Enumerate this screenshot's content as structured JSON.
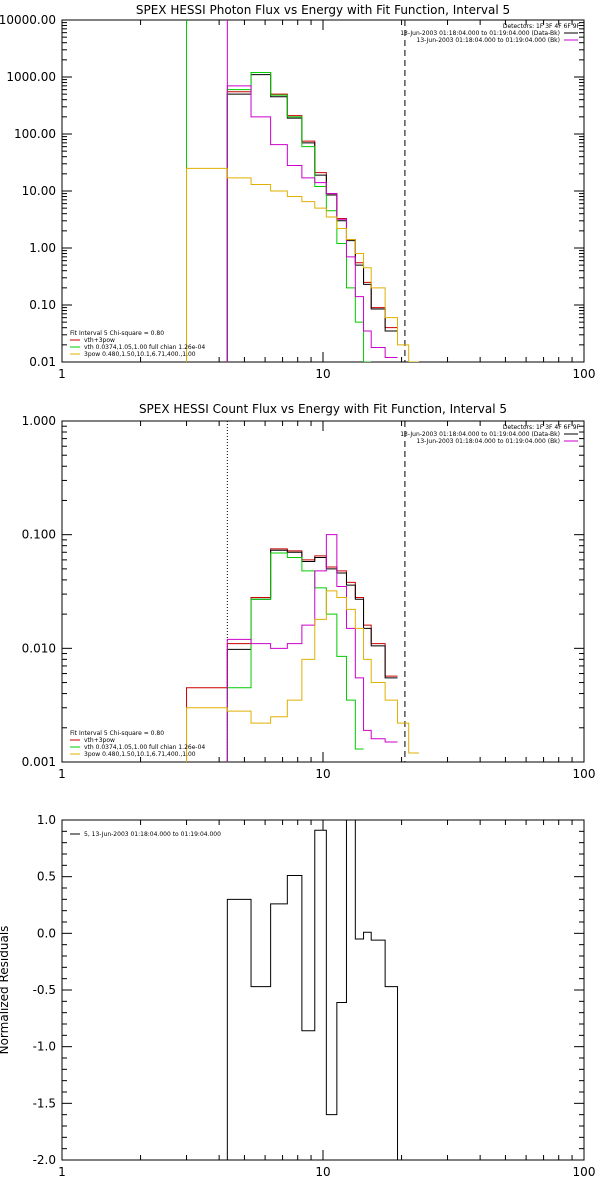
{
  "chart_data": [
    {
      "type": "line",
      "title": "SPEX HESSI Photon Flux vs Energy with Fit Function, Interval 5",
      "xscale": "log",
      "yscale": "log",
      "xlim": [
        1,
        100
      ],
      "ylim": [
        0.01,
        10000
      ],
      "x_ticks": [
        "1",
        "10",
        "100"
      ],
      "y_ticks": [
        "0.01",
        "0.10",
        "1.00",
        "10.00",
        "100.00",
        "1000.00",
        "10000.00"
      ],
      "detectors_label": "Detectors: 1F 3F 4F 6F 9F",
      "legend_right": [
        {
          "text": "13-Jun-2003 01:18:04.000 to 01:19:04.000 (Data-Bk)",
          "color": "#000000"
        },
        {
          "text": "13-Jun-2003 01:18:04.000 to 01:19:04.000 (Bk)",
          "color": "#cc00cc"
        }
      ],
      "legend_left": [
        {
          "text": "Fit Interval 5   Chi-square = 0.80",
          "color": ""
        },
        {
          "text": "vth+3pow",
          "color": "#cc0000"
        },
        {
          "text": "vth 0.0374,1.05,1.00  full chian 1.26e-04",
          "color": "#00cc00"
        },
        {
          "text": "3pow 0.480,1.50,10.1,6.71,400.,1.00",
          "color": "#e0b000"
        }
      ],
      "vlines": [
        {
          "x": 3.0,
          "style": "solid",
          "color": "#00cc00"
        },
        {
          "x": 4.3,
          "style": "solid",
          "color": "#cc00cc"
        },
        {
          "x": 20.6,
          "style": "dashed",
          "color": "#000000"
        }
      ],
      "edges": [
        3.0,
        4.3,
        5.3,
        6.3,
        7.3,
        8.3,
        9.3,
        10.3,
        11.3,
        12.3,
        13.3,
        14.3,
        15.3,
        17.3,
        19.3,
        21.3,
        23.3,
        26.3
      ],
      "series": [
        {
          "name": "vth+3pow",
          "color": "#cc0000",
          "values": [
            null,
            550,
            1200,
            500,
            210,
            75,
            21,
            9,
            3.3,
            1.4,
            0.55,
            0.25,
            0.09,
            0.04,
            null,
            null,
            null
          ]
        },
        {
          "color": "#000000",
          "values": [
            null,
            500,
            1100,
            450,
            190,
            70,
            19,
            8.5,
            3.0,
            1.35,
            0.5,
            0.23,
            0.085,
            0.035,
            null,
            null,
            null
          ]
        },
        {
          "color": "#00cc00",
          "values": [
            null,
            600,
            1200,
            480,
            200,
            60,
            12,
            4.5,
            1.2,
            0.2,
            0.05,
            0.01,
            null,
            null,
            null,
            null,
            null
          ]
        },
        {
          "color": "#cc00cc",
          "values": [
            null,
            700,
            200,
            65,
            28,
            17,
            14,
            9,
            3.2,
            0.7,
            0.14,
            0.035,
            0.018,
            0.012,
            null,
            null,
            null
          ]
        },
        {
          "color": "#e0b000",
          "values": [
            25,
            17,
            13,
            10,
            8,
            6.5,
            5,
            3.5,
            2.2,
            1.4,
            0.8,
            0.45,
            0.2,
            0.06,
            0.02,
            0.01,
            null
          ]
        }
      ]
    },
    {
      "type": "line",
      "title": "SPEX HESSI Count Flux vs Energy with Fit Function, Interval 5",
      "xscale": "log",
      "yscale": "log",
      "xlim": [
        1,
        100
      ],
      "ylim": [
        0.001,
        1
      ],
      "x_ticks": [
        "1",
        "10",
        "100"
      ],
      "y_ticks": [
        "0.001",
        "0.010",
        "0.100",
        "1.000"
      ],
      "detectors_label": "Detectors: 1F 3F 4F 6F 9F",
      "legend_right": [
        {
          "text": "13-Jun-2003 01:18:04.000 to 01:19:04.000 (Data-Bk)",
          "color": "#000000"
        },
        {
          "text": "13-Jun-2003 01:18:04.000 to 01:19:04.000 (Bk)",
          "color": "#cc00cc"
        }
      ],
      "legend_left": [
        {
          "text": "Fit Interval 5   Chi-square = 0.80",
          "color": ""
        },
        {
          "text": "vth+3pow",
          "color": "#cc0000"
        },
        {
          "text": "vth 0.0374,1.05,1.00  full chian 1.26e-04",
          "color": "#00cc00"
        },
        {
          "text": "3pow 0.480,1.50,10.1,6.71,400.,1.00",
          "color": "#e0b000"
        }
      ],
      "vlines": [
        {
          "x": 4.3,
          "style": "dotted",
          "color": "#000000"
        },
        {
          "x": 20.6,
          "style": "dashed",
          "color": "#000000"
        }
      ],
      "edges": [
        3.0,
        4.3,
        5.3,
        6.3,
        7.3,
        8.3,
        9.3,
        10.3,
        11.3,
        12.3,
        13.3,
        14.3,
        15.3,
        17.3,
        19.3,
        21.3,
        23.3,
        26.3
      ],
      "series": [
        {
          "name": "vth+3pow",
          "color": "#cc0000",
          "values": [
            0.0045,
            0.011,
            0.028,
            0.075,
            0.072,
            0.06,
            0.065,
            0.052,
            0.048,
            0.038,
            0.028,
            0.016,
            0.011,
            0.0057,
            null,
            null,
            null
          ]
        },
        {
          "color": "#000000",
          "values": [
            null,
            0.0098,
            0.027,
            0.073,
            0.07,
            0.058,
            0.063,
            0.05,
            0.046,
            0.036,
            0.027,
            0.015,
            0.0105,
            0.0055,
            null,
            null,
            null
          ]
        },
        {
          "color": "#00cc00",
          "values": [
            null,
            0.0045,
            0.027,
            0.069,
            0.063,
            0.048,
            0.034,
            0.02,
            0.0085,
            0.0035,
            0.0013,
            null,
            null,
            null,
            null,
            null,
            null
          ]
        },
        {
          "color": "#cc00cc",
          "values": [
            null,
            0.012,
            0.011,
            0.01,
            0.011,
            0.016,
            0.048,
            0.1,
            0.035,
            0.015,
            0.0055,
            0.0019,
            0.0016,
            0.0015,
            null,
            null,
            null
          ]
        },
        {
          "color": "#e0b000",
          "values": [
            0.003,
            0.0028,
            0.0022,
            0.0025,
            0.0035,
            0.008,
            0.018,
            0.032,
            0.028,
            0.022,
            0.015,
            0.008,
            0.005,
            0.0035,
            0.0022,
            0.0012,
            null
          ]
        }
      ]
    },
    {
      "type": "line",
      "title": "",
      "xscale": "log",
      "yscale": "linear",
      "xlim": [
        1,
        100
      ],
      "ylim": [
        -2.0,
        1.0
      ],
      "x_ticks": [
        "1",
        "10",
        "100"
      ],
      "y_ticks": [
        "-2.0",
        "-1.5",
        "-1.0",
        "-0.5",
        "0.0",
        "0.5",
        "1.0"
      ],
      "ylabel": "Normalized Residuals",
      "legend_left": [
        {
          "text": "5, 13-Jun-2003 01:18:04.000 to 01:19:04.000",
          "color": "#000000"
        }
      ],
      "edges": [
        4.3,
        5.3,
        6.3,
        7.3,
        8.3,
        9.3,
        10.3,
        11.3,
        12.3,
        13.3,
        14.3,
        15.3,
        17.3,
        19.3,
        21.3
      ],
      "series": [
        {
          "color": "#000000",
          "values": [
            0.3,
            -0.47,
            0.26,
            0.51,
            -0.86,
            0.91,
            -1.6,
            -0.61,
            1.0,
            -0.05,
            0.01,
            -0.06,
            -0.47,
            -2.0
          ]
        }
      ]
    }
  ]
}
